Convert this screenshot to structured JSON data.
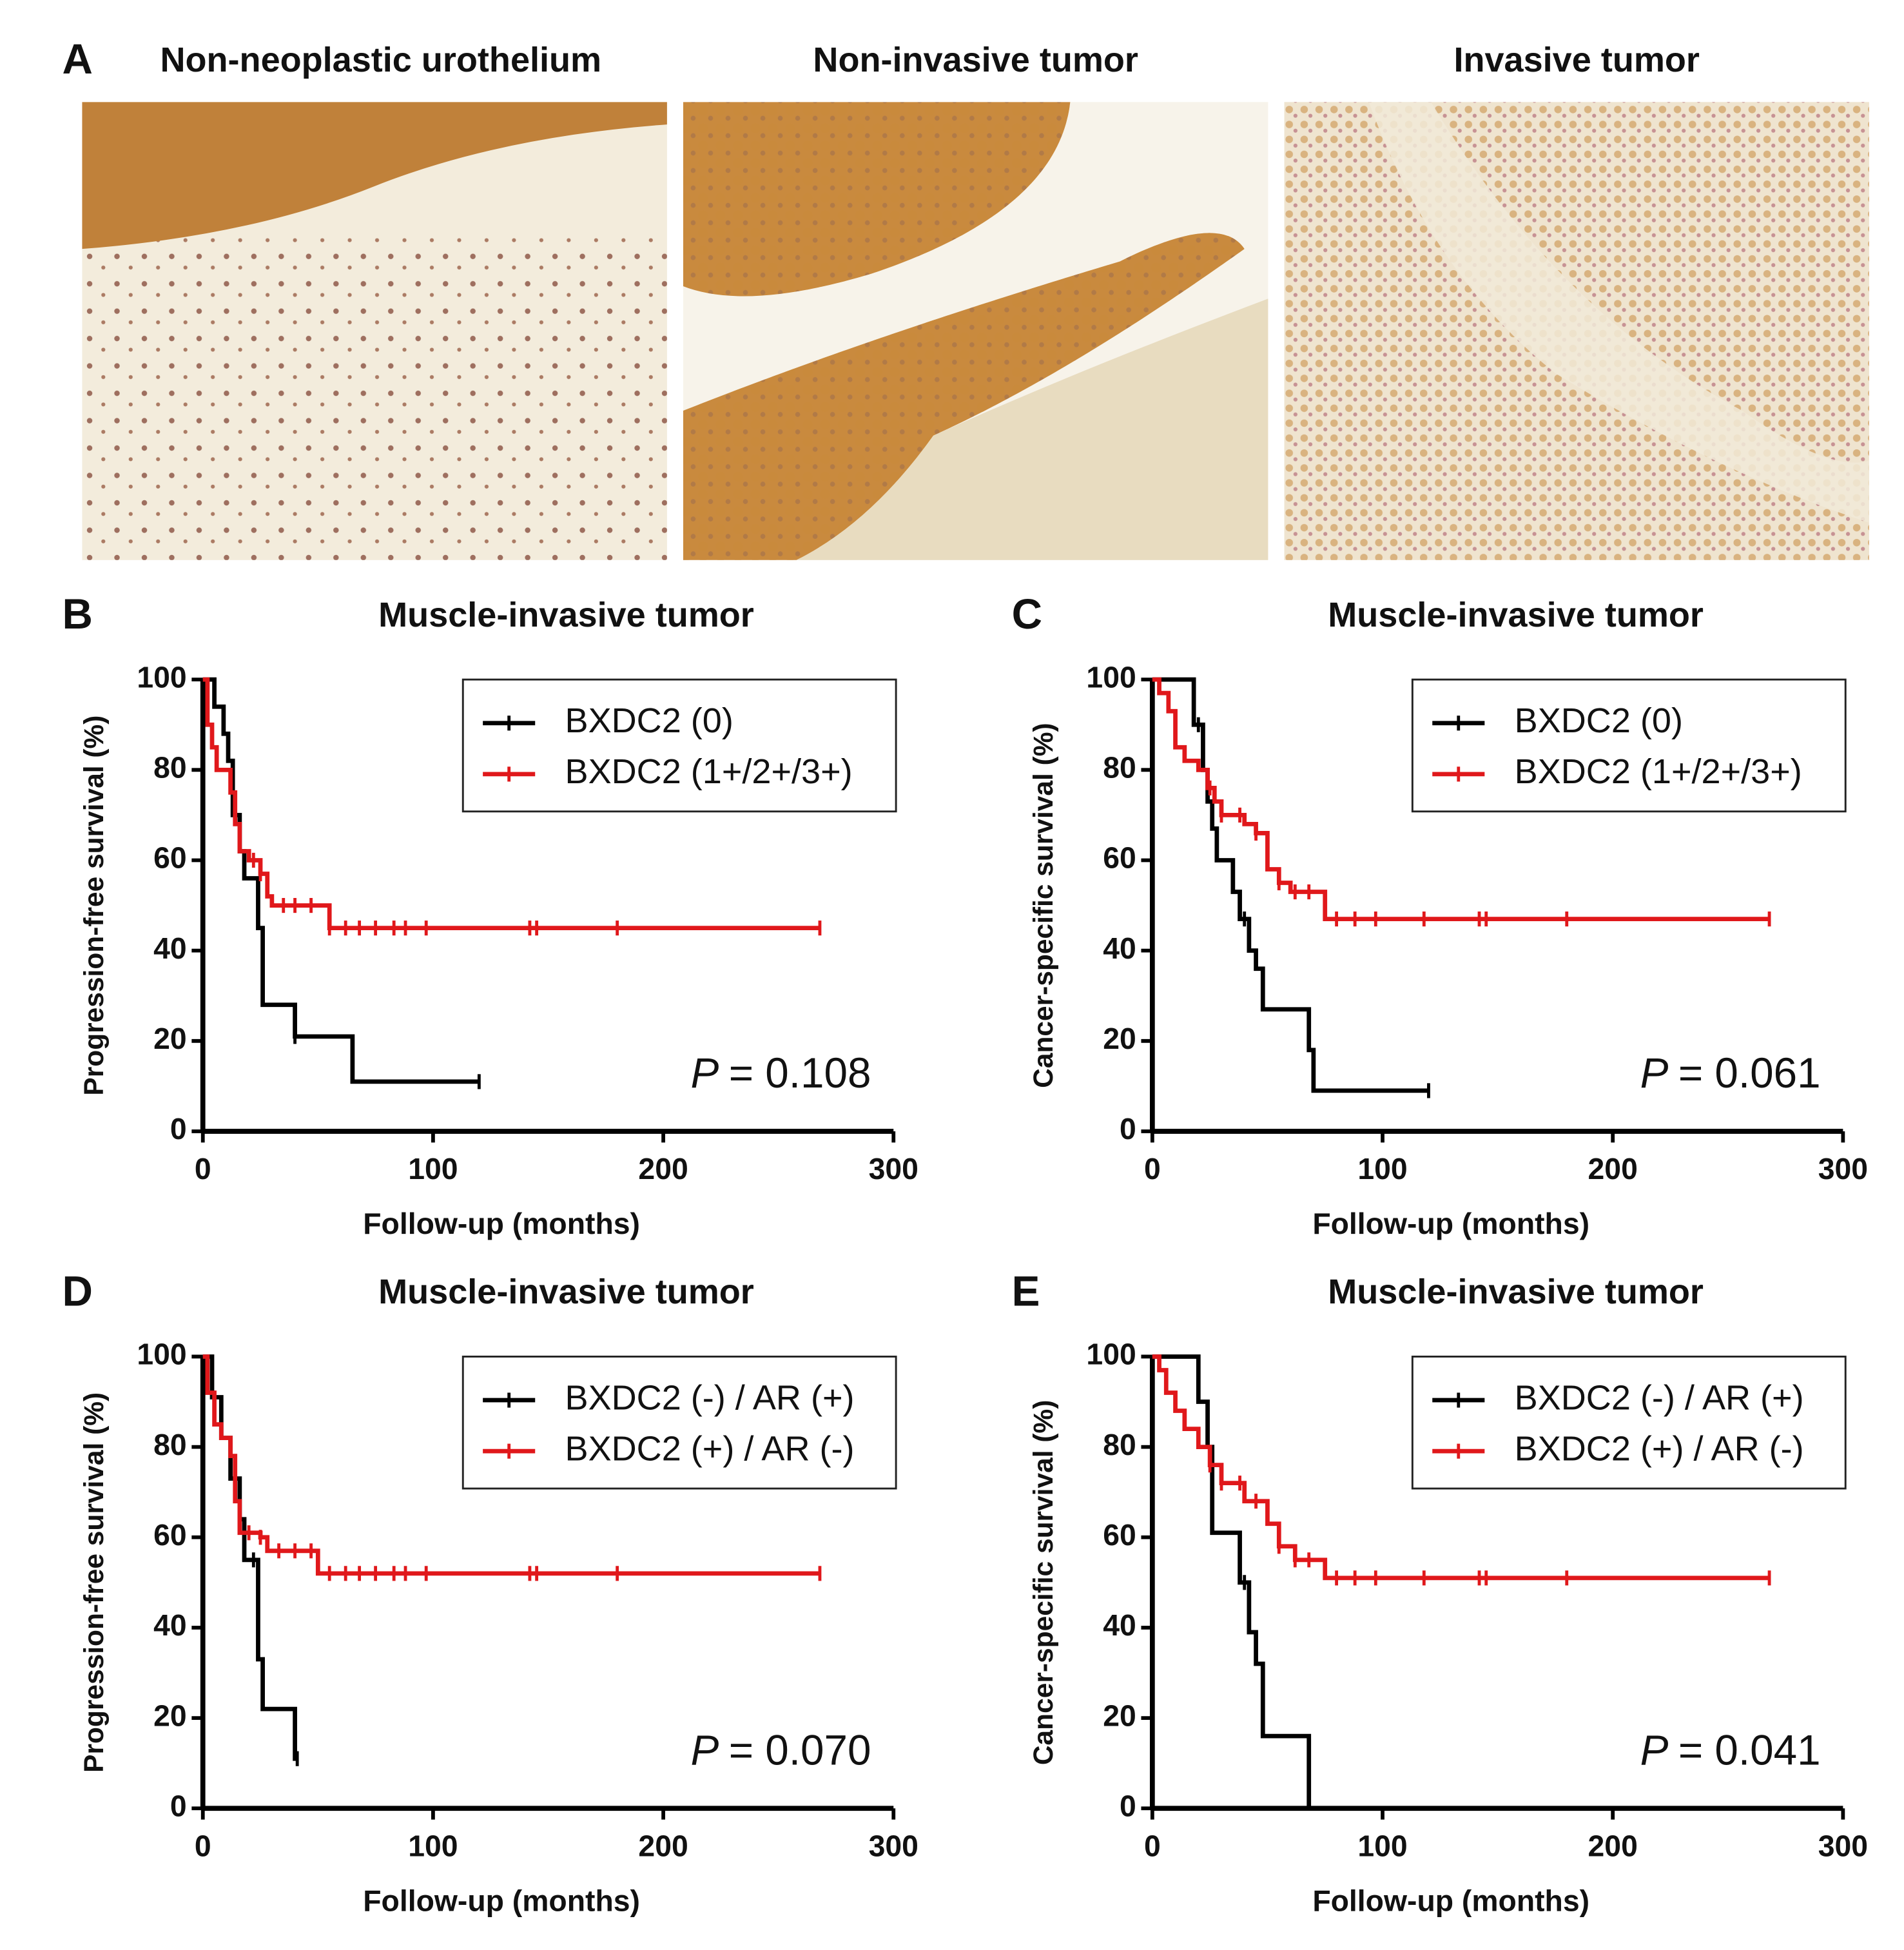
{
  "images": {
    "label": "A",
    "titles": [
      "Non-neoplastic urothelium",
      "Non-invasive tumor",
      "Invasive tumor"
    ]
  },
  "chart_data": [
    {
      "type": "step",
      "label": "B",
      "title": "Muscle-invasive tumor",
      "xlabel": "Follow-up (months)",
      "ylabel": "Progression-free survival (%)",
      "xlim": [
        0,
        300
      ],
      "ylim": [
        0,
        100
      ],
      "xticks": [
        0,
        100,
        200,
        300
      ],
      "yticks": [
        0,
        20,
        40,
        60,
        80,
        100
      ],
      "legend": "upper right",
      "annotation_symbol": "P",
      "annotation": "= 0.108",
      "series": [
        {
          "name": "BXDC2 (0)",
          "color": "#000000",
          "x": [
            0,
            5,
            9,
            11,
            13,
            16,
            18,
            24,
            26,
            40,
            65,
            120
          ],
          "values": [
            100,
            94,
            88,
            82,
            70,
            62,
            56,
            45,
            28,
            21,
            11,
            11
          ],
          "censor_x": [
            40,
            120
          ]
        },
        {
          "name": "BXDC2 (1+/2+/3+)",
          "color": "#e0181b",
          "x": [
            0,
            2,
            4,
            6,
            12,
            14,
            16,
            20,
            25,
            28,
            30,
            55,
            268
          ],
          "values": [
            100,
            90,
            85,
            80,
            75,
            68,
            62,
            60,
            57,
            52,
            50,
            45,
            45
          ],
          "censor_x": [
            22,
            25,
            35,
            40,
            47,
            55,
            62,
            68,
            75,
            83,
            88,
            97,
            142,
            145,
            180,
            268
          ]
        }
      ]
    },
    {
      "type": "step",
      "label": "C",
      "title": "Muscle-invasive tumor",
      "xlabel": "Follow-up (months)",
      "ylabel": "Cancer-specific survival (%)",
      "xlim": [
        0,
        300
      ],
      "ylim": [
        0,
        100
      ],
      "xticks": [
        0,
        100,
        200,
        300
      ],
      "yticks": [
        0,
        20,
        40,
        60,
        80,
        100
      ],
      "legend": "upper right",
      "annotation_symbol": "P",
      "annotation": "= 0.061",
      "series": [
        {
          "name": "BXDC2 (0)",
          "color": "#000000",
          "x": [
            0,
            18,
            22,
            24,
            26,
            28,
            35,
            38,
            42,
            45,
            48,
            68,
            70,
            120
          ],
          "values": [
            100,
            90,
            80,
            73,
            67,
            60,
            53,
            47,
            40,
            36,
            27,
            18,
            9,
            9
          ],
          "censor_x": [
            20,
            40,
            120
          ]
        },
        {
          "name": "BXDC2 (1+/2+/3+)",
          "color": "#e0181b",
          "x": [
            0,
            3,
            7,
            10,
            14,
            20,
            24,
            27,
            30,
            40,
            45,
            50,
            55,
            60,
            75,
            268
          ],
          "values": [
            100,
            97,
            93,
            85,
            82,
            80,
            76,
            73,
            70,
            68,
            66,
            58,
            55,
            53,
            47,
            47
          ],
          "censor_x": [
            25,
            30,
            38,
            45,
            55,
            62,
            68,
            80,
            88,
            97,
            118,
            142,
            145,
            180,
            268
          ]
        }
      ]
    },
    {
      "type": "step",
      "label": "D",
      "title": "Muscle-invasive tumor",
      "xlabel": "Follow-up (months)",
      "ylabel": "Progression-free survival (%)",
      "xlim": [
        0,
        300
      ],
      "ylim": [
        0,
        100
      ],
      "xticks": [
        0,
        100,
        200,
        300
      ],
      "yticks": [
        0,
        20,
        40,
        60,
        80,
        100
      ],
      "legend": "upper right",
      "annotation_symbol": "P",
      "annotation": "= 0.070",
      "series": [
        {
          "name": "BXDC2 (-) / AR (+)",
          "color": "#000000",
          "x": [
            0,
            4,
            8,
            12,
            16,
            18,
            24,
            26,
            40,
            41
          ],
          "values": [
            100,
            91,
            82,
            73,
            64,
            55,
            33,
            22,
            11,
            11
          ],
          "censor_x": [
            22,
            41
          ]
        },
        {
          "name": "BXDC2 (+) / AR (-)",
          "color": "#e0181b",
          "x": [
            0,
            2,
            5,
            8,
            12,
            14,
            16,
            25,
            28,
            50,
            268
          ],
          "values": [
            100,
            92,
            85,
            82,
            78,
            68,
            61,
            60,
            57,
            52,
            52
          ],
          "censor_x": [
            20,
            25,
            33,
            40,
            47,
            55,
            62,
            68,
            75,
            83,
            88,
            97,
            142,
            145,
            180,
            268
          ]
        }
      ]
    },
    {
      "type": "step",
      "label": "E",
      "title": "Muscle-invasive tumor",
      "xlabel": "Follow-up (months)",
      "ylabel": "Cancer-specific survival (%)",
      "xlim": [
        0,
        300
      ],
      "ylim": [
        0,
        100
      ],
      "xticks": [
        0,
        100,
        200,
        300
      ],
      "yticks": [
        0,
        20,
        40,
        60,
        80,
        100
      ],
      "legend": "upper right",
      "annotation_symbol": "P",
      "annotation": "= 0.041",
      "series": [
        {
          "name": "BXDC2 (-) / AR (+)",
          "color": "#000000",
          "x": [
            0,
            20,
            24,
            26,
            38,
            42,
            45,
            48,
            68,
            70
          ],
          "values": [
            100,
            90,
            80,
            61,
            50,
            39,
            32,
            16,
            0,
            0
          ],
          "censor_x": [
            40
          ]
        },
        {
          "name": "BXDC2 (+) / AR (-)",
          "color": "#e0181b",
          "x": [
            0,
            3,
            6,
            10,
            14,
            20,
            25,
            30,
            40,
            50,
            55,
            62,
            75,
            268
          ],
          "values": [
            100,
            97,
            92,
            88,
            84,
            80,
            76,
            72,
            68,
            63,
            58,
            55,
            51,
            51
          ],
          "censor_x": [
            25,
            30,
            38,
            45,
            55,
            62,
            68,
            80,
            88,
            97,
            118,
            142,
            145,
            180,
            268
          ]
        }
      ]
    }
  ]
}
